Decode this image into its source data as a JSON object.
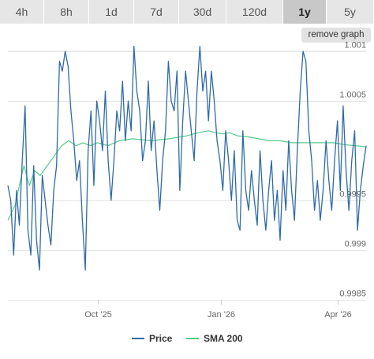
{
  "range_tabs": [
    {
      "label": "4h",
      "active": false
    },
    {
      "label": "8h",
      "active": false
    },
    {
      "label": "1d",
      "active": false
    },
    {
      "label": "7d",
      "active": false
    },
    {
      "label": "30d",
      "active": false
    },
    {
      "label": "120d",
      "active": false
    },
    {
      "label": "1y",
      "active": true
    },
    {
      "label": "5y",
      "active": false
    }
  ],
  "remove_graph_label": "remove graph",
  "colors": {
    "price": "#2f6aa8",
    "sma": "#55cc88",
    "grid": "#e6e6e6",
    "tab_bg": "#e6e6e6",
    "tab_active_bg": "#c8c8c8"
  },
  "chart_data": {
    "type": "line",
    "ylim": [
      0.9985,
      1.001
    ],
    "yticks": [
      {
        "label": "1.001",
        "value": 1.001
      },
      {
        "label": "1.0005",
        "value": 1.0005
      },
      {
        "label": "0.9995",
        "value": 0.9995
      },
      {
        "label": "0.999",
        "value": 0.999
      },
      {
        "label": "0.9985",
        "value": 0.9985
      }
    ],
    "xlim": [
      0,
      100
    ],
    "xticks": [
      {
        "label": "Oct '25",
        "x": 25
      },
      {
        "label": "Jan '26",
        "x": 59.5
      },
      {
        "label": "Apr '26",
        "x": 92
      }
    ],
    "series": [
      {
        "name": "Price",
        "color": "#2f6aa8",
        "keypoints": [
          [
            0,
            0.99965
          ],
          [
            0.8,
            0.9995
          ],
          [
            1.6,
            0.99895
          ],
          [
            2.4,
            0.9996
          ],
          [
            3.2,
            0.99925
          ],
          [
            4,
            0.9999
          ],
          [
            4.8,
            1.00045
          ],
          [
            5.6,
            0.9992
          ],
          [
            6.4,
            0.99895
          ],
          [
            7.2,
            0.99985
          ],
          [
            8,
            0.9991
          ],
          [
            8.8,
            0.9988
          ],
          [
            9.6,
            0.99975
          ],
          [
            10.4,
            0.9995
          ],
          [
            11.2,
            0.99925
          ],
          [
            12,
            0.99905
          ],
          [
            12.8,
            0.9996
          ],
          [
            13.6,
            0.99985
          ],
          [
            14.4,
            1.0009
          ],
          [
            15.2,
            1.0008
          ],
          [
            16,
            1.001
          ],
          [
            16.8,
            1.00085
          ],
          [
            17.6,
            1.0004
          ],
          [
            18.4,
            1.0001
          ],
          [
            19.2,
            0.9997
          ],
          [
            20,
            0.9999
          ],
          [
            20.8,
            0.9993
          ],
          [
            21.6,
            0.9988
          ],
          [
            22.4,
            1.0
          ],
          [
            23.2,
            1.0004
          ],
          [
            24,
            0.99965
          ],
          [
            24.8,
            1.0005
          ],
          [
            25.6,
            1.0003
          ],
          [
            26.4,
            1.0
          ],
          [
            27.2,
            1.0006
          ],
          [
            28,
            0.9999
          ],
          [
            28.8,
            0.9995
          ],
          [
            29.6,
            0.9999
          ],
          [
            30.4,
            1.0004
          ],
          [
            31.2,
            1.0002
          ],
          [
            32,
            1.0007
          ],
          [
            32.8,
            1.0001
          ],
          [
            33.6,
            1.0005
          ],
          [
            34.4,
            1.0002
          ],
          [
            35.2,
            1.00105
          ],
          [
            36,
            1.0006
          ],
          [
            36.8,
            1.0004
          ],
          [
            37.6,
            0.9999
          ],
          [
            38.4,
            1.0001
          ],
          [
            39.2,
            1.0007
          ],
          [
            40,
            1.0
          ],
          [
            40.8,
            1.0003
          ],
          [
            41.6,
            0.9998
          ],
          [
            42.4,
            0.9994
          ],
          [
            43.2,
            0.9999
          ],
          [
            44,
            1.0002
          ],
          [
            44.8,
            1.0009
          ],
          [
            45.6,
            1.0005
          ],
          [
            46.4,
            1.0004
          ],
          [
            47.2,
            1.0008
          ],
          [
            48,
            0.9996
          ],
          [
            48.8,
            1.0003
          ],
          [
            49.6,
            1.0008
          ],
          [
            50.4,
            1.0005
          ],
          [
            51.2,
            1.0002
          ],
          [
            52,
            0.9999
          ],
          [
            52.8,
            1.0006
          ],
          [
            53.6,
            1.00105
          ],
          [
            54.4,
            1.0006
          ],
          [
            55.2,
            1.0008
          ],
          [
            56,
            1.0003
          ],
          [
            56.8,
            1.0008
          ],
          [
            57.6,
            1.0005
          ],
          [
            58.4,
            1.0001
          ],
          [
            59.2,
            0.9999
          ],
          [
            60,
            0.9996
          ],
          [
            60.8,
            1.0002
          ],
          [
            61.6,
            0.9999
          ],
          [
            62.4,
            0.9995
          ],
          [
            63.2,
            1.0
          ],
          [
            64,
            0.9993
          ],
          [
            64.8,
            0.9992
          ],
          [
            65.6,
            1.0002
          ],
          [
            66.4,
            0.9996
          ],
          [
            67.2,
            0.9994
          ],
          [
            68,
            0.9998
          ],
          [
            68.8,
            0.9995
          ],
          [
            69.6,
            0.99925
          ],
          [
            70.4,
            1.0
          ],
          [
            71.2,
            0.9995
          ],
          [
            72,
            0.9992
          ],
          [
            72.8,
            0.9996
          ],
          [
            73.6,
            0.9999
          ],
          [
            74.4,
            0.9993
          ],
          [
            75.2,
            0.9996
          ],
          [
            76,
            0.9991
          ],
          [
            76.8,
            0.9998
          ],
          [
            77.6,
            0.9994
          ],
          [
            78.4,
            1.0001
          ],
          [
            79.2,
            0.9996
          ],
          [
            80,
            0.9993
          ],
          [
            80.8,
            1.0
          ],
          [
            81.6,
            1.0006
          ],
          [
            82.4,
            1.001
          ],
          [
            83.2,
            1.0009
          ],
          [
            84,
            1.0002
          ],
          [
            84.8,
            0.9999
          ],
          [
            85.6,
            0.9994
          ],
          [
            86.4,
            0.9997
          ],
          [
            87.2,
            0.9993
          ],
          [
            88,
            0.9996
          ],
          [
            88.8,
            1.0001
          ],
          [
            89.6,
            0.9997
          ],
          [
            90.4,
            0.9994
          ],
          [
            91.2,
            0.9999
          ],
          [
            92,
            1.0003
          ],
          [
            92.8,
            0.9996
          ],
          [
            93.6,
            1.00045
          ],
          [
            94.4,
            0.9998
          ],
          [
            95.2,
            0.9994
          ],
          [
            96,
            0.9999
          ],
          [
            96.8,
            1.0002
          ],
          [
            97.6,
            0.9992
          ],
          [
            98.4,
            0.9996
          ],
          [
            99.2,
            0.99985
          ],
          [
            100,
            1.00005
          ]
        ]
      },
      {
        "name": "SMA 200",
        "color": "#55cc88",
        "keypoints": [
          [
            0,
            0.9993
          ],
          [
            2,
            0.99945
          ],
          [
            3.5,
            0.9997
          ],
          [
            4.5,
            0.99985
          ],
          [
            6,
            0.99965
          ],
          [
            7.5,
            0.9998
          ],
          [
            9,
            0.99975
          ],
          [
            11,
            0.99985
          ],
          [
            13,
            0.99995
          ],
          [
            15,
            1.00005
          ],
          [
            17,
            1.0001
          ],
          [
            19,
            1.00005
          ],
          [
            21,
            1.00008
          ],
          [
            23,
            1.00005
          ],
          [
            25,
            1.00008
          ],
          [
            28,
            1.00005
          ],
          [
            31,
            1.0001
          ],
          [
            35,
            1.00012
          ],
          [
            40,
            1.0001
          ],
          [
            45,
            1.00012
          ],
          [
            50,
            1.00015
          ],
          [
            53,
            1.00018
          ],
          [
            56,
            1.0002
          ],
          [
            58,
            1.00018
          ],
          [
            60,
            1.00017
          ],
          [
            62,
            1.00018
          ],
          [
            64,
            1.00015
          ],
          [
            67,
            1.00014
          ],
          [
            70,
            1.00012
          ],
          [
            73,
            1.0001
          ],
          [
            76,
            1.0001
          ],
          [
            79,
            1.00008
          ],
          [
            82,
            1.00008
          ],
          [
            85,
            1.00008
          ],
          [
            88,
            1.00008
          ],
          [
            91,
            1.00008
          ],
          [
            94,
            1.00006
          ],
          [
            97,
            1.00005
          ],
          [
            100,
            1.00004
          ]
        ]
      }
    ]
  }
}
